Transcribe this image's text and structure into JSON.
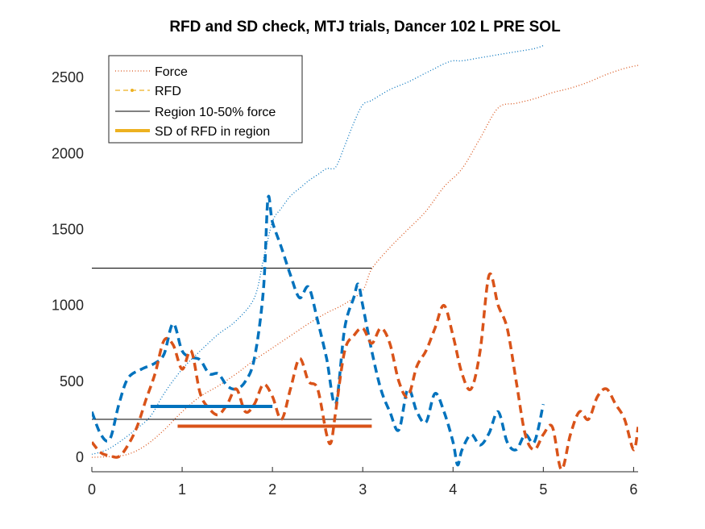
{
  "chart_data": {
    "type": "line",
    "title": "RFD and SD check, MTJ trials, Dancer 102 L PRE SOL",
    "xlabel": "",
    "ylabel": "",
    "xlim": [
      0,
      6.05
    ],
    "ylim": [
      -95,
      2750
    ],
    "x_ticks": [
      0,
      1,
      2,
      3,
      4,
      5,
      6
    ],
    "y_ticks": [
      0,
      500,
      1000,
      1500,
      2000,
      2500
    ],
    "grid": false,
    "legend": {
      "placement": "top-left",
      "entries": [
        {
          "label": "Force",
          "style": "dotted",
          "color": "#D95319"
        },
        {
          "label": "RFD",
          "style": "dashed-marker",
          "color": "#EDB120"
        },
        {
          "label": "Region 10-50% force",
          "style": "solid-thin",
          "color": "#000000"
        },
        {
          "label": "SD of RFD in region",
          "style": "solid-thick",
          "color": "#EDB120"
        }
      ]
    },
    "series": [
      {
        "kind": "force",
        "color": "#0072BD",
        "x": [
          0,
          0.1,
          0.2,
          0.35,
          0.5,
          0.65,
          0.8,
          1.0,
          1.2,
          1.4,
          1.6,
          1.8,
          1.9,
          2.0,
          2.1,
          2.2,
          2.3,
          2.4,
          2.5,
          2.6,
          2.7,
          2.8,
          2.9,
          3.0,
          3.1,
          3.3,
          3.5,
          3.7,
          3.8,
          3.9,
          4.0,
          4.1,
          4.3,
          4.5,
          4.7,
          4.9,
          5.0
        ],
        "y": [
          20,
          35,
          60,
          120,
          190,
          270,
          420,
          580,
          700,
          810,
          900,
          1050,
          1300,
          1550,
          1640,
          1720,
          1770,
          1820,
          1860,
          1900,
          1910,
          2050,
          2200,
          2320,
          2350,
          2420,
          2470,
          2530,
          2560,
          2590,
          2610,
          2610,
          2630,
          2650,
          2670,
          2690,
          2710
        ]
      },
      {
        "kind": "force",
        "color": "#D95319",
        "x": [
          0,
          0.2,
          0.4,
          0.6,
          0.8,
          1.0,
          1.2,
          1.4,
          1.6,
          1.8,
          2.0,
          2.2,
          2.4,
          2.6,
          2.8,
          3.0,
          3.1,
          3.3,
          3.5,
          3.7,
          3.9,
          4.1,
          4.3,
          4.5,
          4.7,
          4.9,
          5.1,
          5.3,
          5.5,
          5.7,
          5.9,
          6.05
        ],
        "y": [
          0,
          5,
          20,
          80,
          180,
          300,
          400,
          470,
          550,
          640,
          720,
          800,
          880,
          950,
          1010,
          1100,
          1240,
          1380,
          1500,
          1620,
          1780,
          1900,
          2100,
          2300,
          2330,
          2360,
          2400,
          2430,
          2470,
          2520,
          2560,
          2580
        ]
      },
      {
        "kind": "rfd",
        "color": "#0072BD",
        "x": [
          0,
          0.1,
          0.2,
          0.3,
          0.4,
          0.55,
          0.7,
          0.8,
          0.9,
          1.0,
          1.1,
          1.2,
          1.3,
          1.4,
          1.5,
          1.6,
          1.7,
          1.8,
          1.9,
          1.95,
          2.0,
          2.1,
          2.2,
          2.3,
          2.4,
          2.5,
          2.6,
          2.7,
          2.8,
          2.9,
          2.95,
          3.0,
          3.1,
          3.2,
          3.3,
          3.4,
          3.5,
          3.6,
          3.7,
          3.8,
          3.9,
          4.0,
          4.05,
          4.1,
          4.2,
          4.3,
          4.4,
          4.5,
          4.6,
          4.7,
          4.8,
          4.9,
          5.0
        ],
        "y": [
          300,
          150,
          120,
          350,
          520,
          580,
          620,
          680,
          880,
          700,
          660,
          640,
          550,
          550,
          470,
          450,
          500,
          650,
          1100,
          1700,
          1550,
          1380,
          1200,
          1050,
          1120,
          900,
          650,
          350,
          850,
          1050,
          1140,
          1000,
          700,
          450,
          300,
          180,
          450,
          300,
          230,
          420,
          300,
          100,
          -50,
          50,
          150,
          80,
          160,
          300,
          100,
          50,
          150,
          100,
          350
        ]
      },
      {
        "kind": "rfd",
        "color": "#D95319",
        "x": [
          0,
          0.1,
          0.2,
          0.3,
          0.4,
          0.5,
          0.6,
          0.7,
          0.8,
          0.9,
          1.0,
          1.1,
          1.2,
          1.3,
          1.4,
          1.5,
          1.6,
          1.7,
          1.8,
          1.9,
          2.0,
          2.1,
          2.2,
          2.3,
          2.4,
          2.5,
          2.6,
          2.65,
          2.7,
          2.8,
          2.9,
          3.0,
          3.1,
          3.2,
          3.3,
          3.4,
          3.5,
          3.6,
          3.7,
          3.8,
          3.9,
          4.0,
          4.1,
          4.2,
          4.3,
          4.4,
          4.5,
          4.6,
          4.7,
          4.8,
          4.9,
          5.0,
          5.1,
          5.2,
          5.3,
          5.4,
          5.5,
          5.6,
          5.7,
          5.8,
          5.9,
          6.0,
          6.05
        ],
        "y": [
          100,
          30,
          10,
          5,
          80,
          200,
          380,
          550,
          770,
          740,
          580,
          700,
          420,
          320,
          280,
          350,
          450,
          300,
          350,
          480,
          400,
          250,
          450,
          650,
          500,
          450,
          150,
          100,
          300,
          700,
          800,
          850,
          750,
          850,
          750,
          500,
          400,
          600,
          700,
          850,
          1000,
          800,
          550,
          450,
          700,
          1200,
          1000,
          850,
          500,
          150,
          50,
          150,
          200,
          -80,
          150,
          300,
          250,
          400,
          450,
          350,
          250,
          50,
          200
        ]
      }
    ],
    "region_lines": [
      {
        "y": 1245,
        "x": [
          0,
          3.1
        ],
        "color": "#000000"
      },
      {
        "y": 250,
        "x": [
          0,
          3.1
        ],
        "color": "#000000"
      }
    ],
    "sd_lines": [
      {
        "y": 335,
        "x": [
          0.65,
          2.0
        ],
        "color": "#0072BD"
      },
      {
        "y": 205,
        "x": [
          0.95,
          3.1
        ],
        "color": "#D95319"
      }
    ]
  }
}
